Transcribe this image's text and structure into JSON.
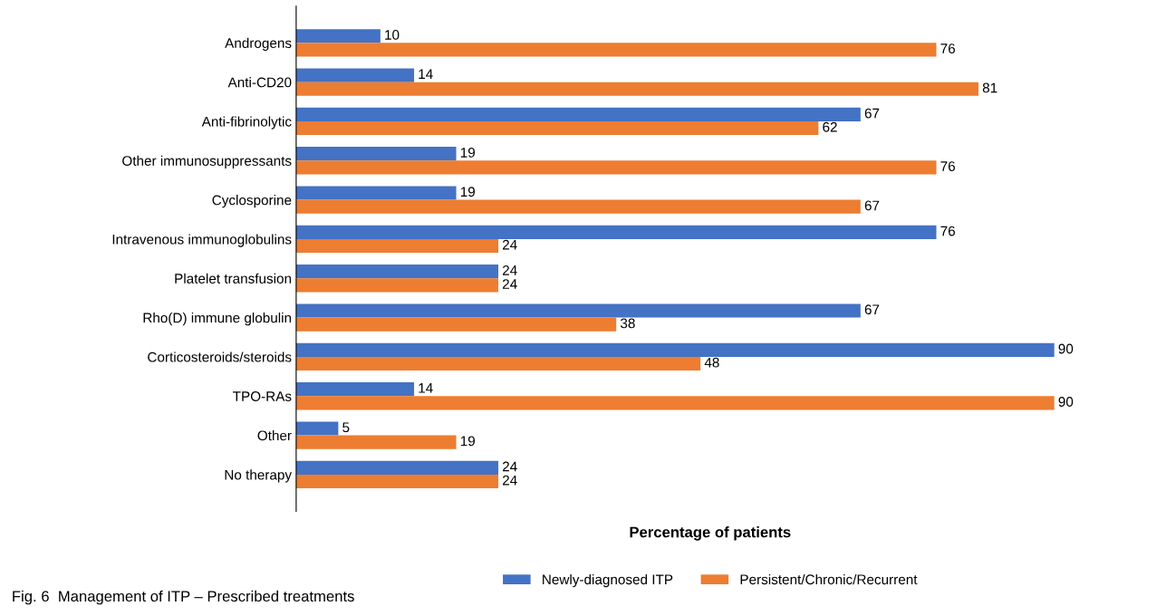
{
  "chart_data": {
    "type": "bar",
    "orientation": "horizontal",
    "xlabel": "Percentage of patients",
    "categories": [
      "Androgens",
      "Anti-CD20",
      "Anti-fibrinolytic",
      "Other immunosuppressants",
      "Cyclosporine",
      "Intravenous immunoglobulins",
      "Platelet transfusion",
      "Rho(D) immune globulin",
      "Corticosteroids/steroids",
      "TPO-RAs",
      "Other",
      "No therapy"
    ],
    "series": [
      {
        "name": "Newly-diagnosed ITP",
        "color": "#4472c4",
        "values": [
          10,
          14,
          67,
          19,
          19,
          76,
          24,
          67,
          90,
          14,
          5,
          24
        ]
      },
      {
        "name": "Persistent/Chronic/Recurrent",
        "color": "#ed7d31",
        "values": [
          76,
          81,
          62,
          76,
          67,
          24,
          24,
          38,
          48,
          90,
          19,
          24
        ]
      }
    ],
    "data_labels": true,
    "legend": "bottom",
    "grid": false,
    "tick_labels": "y",
    "annotations": [
      "Fig. 6  Management of ITP – Prescribed treatments"
    ]
  }
}
